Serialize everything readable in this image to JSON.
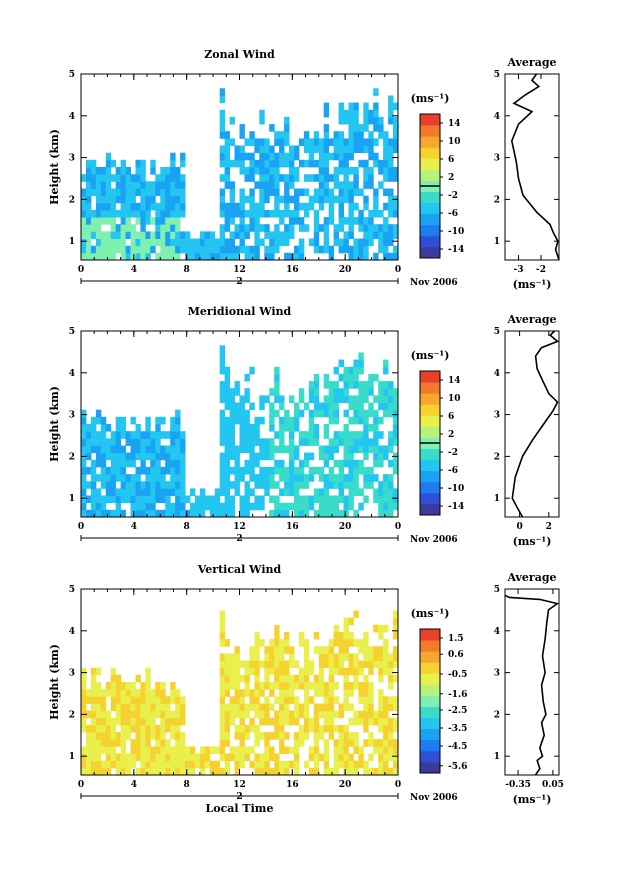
{
  "figure": {
    "date_label": "Nov 2006",
    "xlabel": "Local Time"
  },
  "colors": {
    "scale": [
      "#3b3b9e",
      "#2e4fd6",
      "#1e7bf0",
      "#1aa3f2",
      "#22c6f0",
      "#39dcc9",
      "#7ff0b0",
      "#b9f27a",
      "#e9f04d",
      "#f6d231",
      "#f7a62e",
      "#f27a2a",
      "#e8412b"
    ]
  },
  "chart_data": [
    {
      "type": "heatmap",
      "title": "Zonal Wind",
      "ylabel": "Height (km)",
      "x_ticks": [
        "0",
        "4",
        "8",
        "12",
        "16",
        "20",
        "0"
      ],
      "xlim": [
        0,
        24
      ],
      "y_ticks": [
        "1",
        "2",
        "3",
        "4",
        "5"
      ],
      "ylim": [
        0.55,
        5
      ],
      "day_label": "2",
      "colorbar": {
        "unit_label": "(ms⁻¹)",
        "ticks": [
          "14",
          "10",
          "6",
          "2",
          "-2",
          "-6",
          "-10",
          "-14"
        ],
        "range": [
          -16,
          16
        ],
        "marker_value": 0
      },
      "average": {
        "title": "Average",
        "xlabel": "(ms⁻¹)",
        "x_ticks": [
          "-3",
          "-2"
        ],
        "x_tick_values": [
          -3,
          -2
        ],
        "xlim": [
          -3.6,
          -1.2
        ],
        "y_ticks": [
          "1",
          "2",
          "3",
          "4",
          "5"
        ],
        "profile": [
          [
            -1.2,
            0.55
          ],
          [
            -1.35,
            0.8
          ],
          [
            -1.25,
            1.0
          ],
          [
            -1.45,
            1.2
          ],
          [
            -1.6,
            1.4
          ],
          [
            -2.2,
            1.7
          ],
          [
            -2.8,
            2.1
          ],
          [
            -3.0,
            2.5
          ],
          [
            -3.1,
            2.9
          ],
          [
            -3.3,
            3.4
          ],
          [
            -3.0,
            3.8
          ],
          [
            -2.4,
            4.1
          ],
          [
            -3.2,
            4.3
          ],
          [
            -2.7,
            4.5
          ],
          [
            -2.1,
            4.7
          ],
          [
            -2.4,
            4.85
          ],
          [
            -2.2,
            5.0
          ]
        ]
      }
    },
    {
      "type": "heatmap",
      "title": "Meridional Wind",
      "ylabel": "Height (km)",
      "x_ticks": [
        "0",
        "4",
        "8",
        "12",
        "16",
        "20",
        "0"
      ],
      "xlim": [
        0,
        24
      ],
      "y_ticks": [
        "1",
        "2",
        "3",
        "4",
        "5"
      ],
      "ylim": [
        0.55,
        5
      ],
      "day_label": "2",
      "colorbar": {
        "unit_label": "(ms⁻¹)",
        "ticks": [
          "14",
          "10",
          "6",
          "2",
          "-2",
          "-6",
          "-10",
          "-14"
        ],
        "range": [
          -16,
          16
        ],
        "marker_value": 0
      },
      "average": {
        "title": "Average",
        "xlabel": "(ms⁻¹)",
        "x_ticks": [
          "0",
          "2"
        ],
        "x_tick_values": [
          0,
          2
        ],
        "xlim": [
          -1.0,
          2.7
        ],
        "y_ticks": [
          "1",
          "2",
          "3",
          "4",
          "5"
        ],
        "profile": [
          [
            0.2,
            0.55
          ],
          [
            -0.2,
            0.8
          ],
          [
            -0.5,
            1.0
          ],
          [
            -0.3,
            1.5
          ],
          [
            0.2,
            2.0
          ],
          [
            0.9,
            2.4
          ],
          [
            1.7,
            2.8
          ],
          [
            2.3,
            3.1
          ],
          [
            2.6,
            3.3
          ],
          [
            2.0,
            3.5
          ],
          [
            1.6,
            3.8
          ],
          [
            1.2,
            4.1
          ],
          [
            1.1,
            4.4
          ],
          [
            1.5,
            4.6
          ],
          [
            2.6,
            4.75
          ],
          [
            2.1,
            4.9
          ],
          [
            2.4,
            5.0
          ]
        ]
      }
    },
    {
      "type": "heatmap",
      "title": "Vertical Wind",
      "ylabel": "Height (km)",
      "x_ticks": [
        "0",
        "4",
        "8",
        "12",
        "16",
        "20",
        "0"
      ],
      "xlim": [
        0,
        24
      ],
      "y_ticks": [
        "1",
        "2",
        "3",
        "4",
        "5"
      ],
      "ylim": [
        0.55,
        5
      ],
      "day_label": "2",
      "xlabel": "Local Time",
      "colorbar": {
        "unit_label": "(ms⁻¹)",
        "ticks": [
          "1.5",
          "0.6",
          "-0.5",
          "-1.6",
          "-2.5",
          "-3.5",
          "-4.5",
          "-5.6"
        ],
        "range": [
          -6.0,
          2.0
        ],
        "marker_value": null
      },
      "average": {
        "title": "Average",
        "xlabel": "(ms⁻¹)",
        "x_ticks": [
          "-0.35",
          "0.05"
        ],
        "x_tick_values": [
          -0.35,
          0.05
        ],
        "xlim": [
          -0.5,
          0.12
        ],
        "y_ticks": [
          "1",
          "2",
          "3",
          "4",
          "5"
        ],
        "profile": [
          [
            -0.15,
            0.55
          ],
          [
            -0.1,
            0.7
          ],
          [
            -0.13,
            0.9
          ],
          [
            -0.07,
            1.0
          ],
          [
            -0.1,
            1.2
          ],
          [
            -0.05,
            1.5
          ],
          [
            -0.08,
            1.8
          ],
          [
            -0.03,
            2.0
          ],
          [
            -0.06,
            2.3
          ],
          [
            -0.08,
            2.7
          ],
          [
            -0.04,
            3.0
          ],
          [
            -0.07,
            3.4
          ],
          [
            -0.04,
            3.8
          ],
          [
            -0.02,
            4.2
          ],
          [
            0.0,
            4.5
          ],
          [
            0.1,
            4.65
          ],
          [
            -0.1,
            4.75
          ],
          [
            -0.45,
            4.8
          ],
          [
            -0.5,
            4.85
          ]
        ]
      }
    }
  ]
}
